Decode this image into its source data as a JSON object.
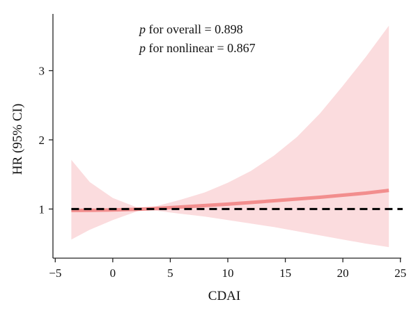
{
  "chart_data": {
    "type": "line",
    "xlabel": "CDAI",
    "ylabel": "HR (95% CI)",
    "xlim": [
      -5.2,
      25.2
    ],
    "ylim": [
      0.29,
      3.82
    ],
    "x_ticks": [
      -5,
      0,
      5,
      10,
      15,
      20,
      25
    ],
    "x_tick_labels": [
      "−5",
      "0",
      "5",
      "10",
      "15",
      "20",
      "25"
    ],
    "y_ticks": [
      1,
      2,
      3
    ],
    "y_tick_labels": [
      "1",
      "2",
      "3"
    ],
    "annotations": [
      {
        "p": "p",
        "text": " for overall = 0.898"
      },
      {
        "p": "p",
        "text": " for nonlinear = 0.867"
      }
    ],
    "reference_line": {
      "y": 1,
      "style": "dashed",
      "color": "#000000"
    },
    "series": [
      {
        "x": [
          -3.6,
          -2,
          0,
          2,
          2.7,
          4,
          6,
          8,
          10,
          12,
          14,
          16,
          18,
          20,
          22,
          24
        ],
        "y": [
          0.98,
          0.982,
          0.987,
          0.995,
          1.0,
          1.01,
          1.03,
          1.05,
          1.07,
          1.095,
          1.12,
          1.145,
          1.17,
          1.2,
          1.23,
          1.27
        ],
        "lower": [
          0.56,
          0.7,
          0.84,
          0.96,
          1.0,
          0.97,
          0.93,
          0.89,
          0.84,
          0.79,
          0.74,
          0.68,
          0.62,
          0.56,
          0.5,
          0.45
        ],
        "upper": [
          1.71,
          1.39,
          1.16,
          1.03,
          1.0,
          1.05,
          1.14,
          1.24,
          1.38,
          1.55,
          1.77,
          2.04,
          2.38,
          2.78,
          3.2,
          3.65
        ],
        "color": "#f28e8e",
        "band_color": "#fbdcde"
      }
    ]
  }
}
